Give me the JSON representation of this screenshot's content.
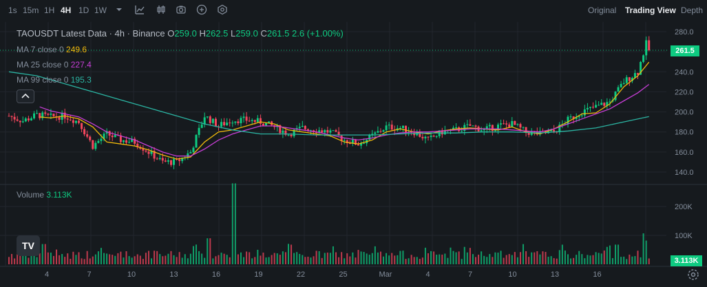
{
  "toolbar": {
    "intervals": [
      "1s",
      "15m",
      "1H",
      "4H",
      "1D",
      "1W"
    ],
    "active_interval": "4H",
    "views": [
      "Original",
      "Trading View",
      "Depth"
    ],
    "active_view": "Trading View",
    "icons": [
      "chevron-down-icon",
      "line-chart-icon",
      "candles-icon",
      "camera-icon",
      "plus-icon",
      "settings-hex-icon"
    ]
  },
  "legend": {
    "title": "TAOUSDT Latest Data · 4h · Binance",
    "o_label": "O",
    "o_value": "259.0",
    "h_label": "H",
    "h_value": "262.5",
    "l_label": "L",
    "l_value": "259.0",
    "c_label": "C",
    "c_value": "261.5",
    "change": "2.6 (+1.00%)",
    "ma7_label": "MA 7 close 0",
    "ma7_value": "249.6",
    "ma25_label": "MA 25 close 0",
    "ma25_value": "227.4",
    "ma99_label": "MA 99 close 0",
    "ma99_value": "195.3",
    "volume_label": "Volume",
    "volume_value": "3.113K"
  },
  "price_tag": "261.5",
  "volume_tag": "3.113K",
  "logo_text": "TV",
  "colors": {
    "background": "#161a1e",
    "grid": "#22262d",
    "up": "#0ecb81",
    "down": "#f6465d",
    "ma7": "#f0b90b",
    "ma25": "#c73ed6",
    "ma99": "#2bb5a3",
    "axis_text": "#848e9c"
  },
  "chart_data": {
    "type": "candlestick",
    "x_tick_labels": [
      "4",
      "7",
      "10",
      "13",
      "16",
      "19",
      "22",
      "25",
      "Mar",
      "4",
      "7",
      "10",
      "13",
      "16"
    ],
    "price_axis": {
      "ticks": [
        280.0,
        260.0,
        240.0,
        220.0,
        200.0,
        180.0,
        160.0,
        140.0
      ],
      "ylim": [
        128,
        290
      ]
    },
    "volume_axis": {
      "ticks": [
        "200K",
        "100K"
      ],
      "tick_values": [
        200000,
        100000
      ],
      "ylim": [
        0,
        300000
      ]
    },
    "moving_averages": [
      {
        "name": "MA 7",
        "last": 249.6,
        "points": [
          [
            2.2,
            195
          ],
          [
            3,
            194
          ],
          [
            4,
            196
          ],
          [
            5,
            193
          ],
          [
            6,
            185
          ],
          [
            7,
            170
          ],
          [
            8,
            168
          ],
          [
            9,
            166
          ],
          [
            10,
            162
          ],
          [
            11,
            157
          ],
          [
            12,
            153
          ],
          [
            13,
            155
          ],
          [
            14,
            170
          ],
          [
            15,
            180
          ],
          [
            16,
            182
          ],
          [
            17,
            186
          ],
          [
            18,
            190
          ],
          [
            19,
            188
          ],
          [
            20,
            182
          ],
          [
            21,
            180
          ],
          [
            22,
            178
          ],
          [
            23,
            176
          ],
          [
            24,
            170
          ],
          [
            25,
            168
          ],
          [
            26,
            172
          ],
          [
            27,
            180
          ],
          [
            28,
            183
          ],
          [
            29,
            180
          ],
          [
            30,
            178
          ],
          [
            31,
            181
          ],
          [
            32,
            183
          ],
          [
            33,
            184
          ],
          [
            34,
            183
          ],
          [
            35,
            182
          ],
          [
            36,
            185
          ],
          [
            37,
            180
          ],
          [
            38,
            178
          ],
          [
            39,
            183
          ],
          [
            40,
            190
          ],
          [
            41,
            198
          ],
          [
            42,
            199
          ],
          [
            43,
            208
          ],
          [
            44,
            225
          ],
          [
            45,
            236
          ],
          [
            45.8,
            249.6
          ]
        ]
      },
      {
        "name": "MA 25",
        "last": 227.4,
        "points": [
          [
            2.2,
            205
          ],
          [
            3,
            201
          ],
          [
            4,
            198
          ],
          [
            5,
            195
          ],
          [
            6,
            188
          ],
          [
            7,
            180
          ],
          [
            8,
            176
          ],
          [
            9,
            172
          ],
          [
            10,
            166
          ],
          [
            11,
            160
          ],
          [
            12,
            156
          ],
          [
            13,
            156
          ],
          [
            14,
            163
          ],
          [
            15,
            172
          ],
          [
            16,
            178
          ],
          [
            17,
            182
          ],
          [
            18,
            186
          ],
          [
            19,
            186
          ],
          [
            20,
            184
          ],
          [
            21,
            182
          ],
          [
            22,
            180
          ],
          [
            23,
            177
          ],
          [
            24,
            174
          ],
          [
            25,
            172
          ],
          [
            26,
            174
          ],
          [
            27,
            177
          ],
          [
            28,
            179
          ],
          [
            29,
            180
          ],
          [
            30,
            180
          ],
          [
            31,
            181
          ],
          [
            32,
            182
          ],
          [
            33,
            183
          ],
          [
            34,
            183
          ],
          [
            35,
            183
          ],
          [
            36,
            182
          ],
          [
            37,
            181
          ],
          [
            38,
            180
          ],
          [
            39,
            183
          ],
          [
            40,
            188
          ],
          [
            41,
            193
          ],
          [
            42,
            198
          ],
          [
            43,
            203
          ],
          [
            44,
            211
          ],
          [
            45,
            219
          ],
          [
            45.8,
            227.4
          ]
        ]
      },
      {
        "name": "MA 99",
        "last": 195.3,
        "points": [
          [
            0,
            240
          ],
          [
            2,
            236
          ],
          [
            4,
            228
          ],
          [
            6,
            220
          ],
          [
            8,
            212
          ],
          [
            10,
            204
          ],
          [
            12,
            196
          ],
          [
            14,
            188
          ],
          [
            16,
            182
          ],
          [
            18,
            178
          ],
          [
            20,
            178
          ],
          [
            22,
            177
          ],
          [
            24,
            177
          ],
          [
            26,
            177
          ],
          [
            28,
            178
          ],
          [
            30,
            179
          ],
          [
            32,
            179
          ],
          [
            34,
            180
          ],
          [
            36,
            180
          ],
          [
            38,
            179
          ],
          [
            40,
            181
          ],
          [
            42,
            184
          ],
          [
            44,
            190
          ],
          [
            45.8,
            195.3
          ]
        ]
      }
    ],
    "candle_trend": [
      [
        0,
        196
      ],
      [
        1,
        191
      ],
      [
        2,
        197
      ],
      [
        3,
        195
      ],
      [
        4,
        196
      ],
      [
        5,
        190
      ],
      [
        6,
        166
      ],
      [
        7,
        178
      ],
      [
        8,
        172
      ],
      [
        9,
        170
      ],
      [
        10,
        160
      ],
      [
        11,
        150
      ],
      [
        12,
        150
      ],
      [
        13,
        160
      ],
      [
        14,
        196
      ],
      [
        15,
        186
      ],
      [
        16,
        192
      ],
      [
        17,
        192
      ],
      [
        18,
        190
      ],
      [
        19,
        185
      ],
      [
        20,
        178
      ],
      [
        21,
        184
      ],
      [
        22,
        182
      ],
      [
        23,
        180
      ],
      [
        24,
        172
      ],
      [
        25,
        168
      ],
      [
        26,
        176
      ],
      [
        27,
        185
      ],
      [
        28,
        184
      ],
      [
        29,
        180
      ],
      [
        30,
        172
      ],
      [
        31,
        180
      ],
      [
        32,
        182
      ],
      [
        33,
        186
      ],
      [
        34,
        182
      ],
      [
        35,
        186
      ],
      [
        36,
        188
      ],
      [
        37,
        180
      ],
      [
        38,
        178
      ],
      [
        39,
        180
      ],
      [
        40,
        192
      ],
      [
        41,
        200
      ],
      [
        42,
        205
      ],
      [
        43,
        210
      ],
      [
        44,
        230
      ],
      [
        45,
        240
      ],
      [
        45.6,
        268
      ],
      [
        45.8,
        261.5
      ]
    ],
    "volume_spikes": [
      [
        16.1,
        280000
      ],
      [
        14.3,
        90000
      ],
      [
        2.5,
        70000
      ],
      [
        43.5,
        68000
      ],
      [
        45.5,
        82000
      ]
    ],
    "last_close": 261.5,
    "last_volume": "3.113K"
  }
}
